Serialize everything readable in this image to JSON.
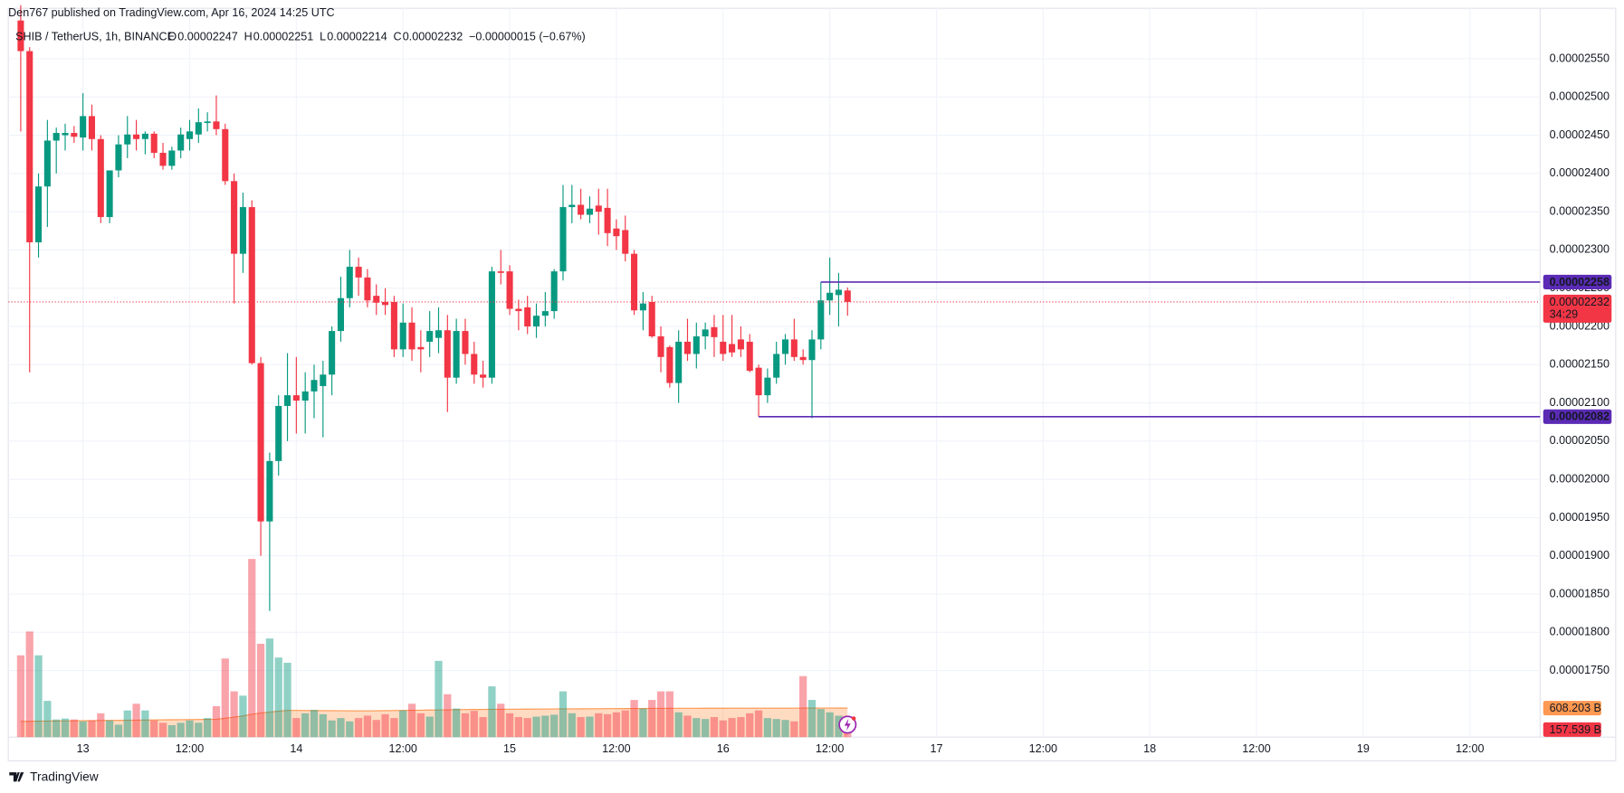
{
  "header": {
    "publisher": "Den767 published on TradingView.com, Apr 16, 2024 14:25 UTC",
    "symbol": "SHIB / TetherUS, 1h, BINANCE",
    "ohlc": [
      {
        "label": "O",
        "value": "0.00002247"
      },
      {
        "label": "H",
        "value": "0.00002251"
      },
      {
        "label": "L",
        "value": "0.00002214"
      },
      {
        "label": "C",
        "value": "0.00002232"
      }
    ],
    "change": "−0.00000015 (−0.67%)"
  },
  "chart_data": {
    "type": "candlestick",
    "x": [
      "12 17:00",
      "12 18:00",
      "12 19:00",
      "12 20:00",
      "12 21:00",
      "12 22:00",
      "12 23:00",
      "13 00:00",
      "13 01:00",
      "13 02:00",
      "13 03:00",
      "13 04:00",
      "13 05:00",
      "13 06:00",
      "13 07:00",
      "13 08:00",
      "13 09:00",
      "13 10:00",
      "13 11:00",
      "13 12:00",
      "13 13:00",
      "13 14:00",
      "13 15:00",
      "13 16:00",
      "13 17:00",
      "13 18:00",
      "13 19:00",
      "13 20:00",
      "13 21:00",
      "13 22:00",
      "13 23:00",
      "14 00:00",
      "14 01:00",
      "14 02:00",
      "14 03:00",
      "14 04:00",
      "14 05:00",
      "14 06:00",
      "14 07:00",
      "14 08:00",
      "14 09:00",
      "14 10:00",
      "14 11:00",
      "14 12:00",
      "14 13:00",
      "14 14:00",
      "14 15:00",
      "14 16:00",
      "14 17:00",
      "14 18:00",
      "14 19:00",
      "14 20:00",
      "14 21:00",
      "14 22:00",
      "14 23:00",
      "15 00:00",
      "15 01:00",
      "15 02:00",
      "15 03:00",
      "15 04:00",
      "15 05:00",
      "15 06:00",
      "15 07:00",
      "15 08:00",
      "15 09:00",
      "15 10:00",
      "15 11:00",
      "15 12:00",
      "15 13:00",
      "15 14:00",
      "15 15:00",
      "15 16:00",
      "15 17:00",
      "15 18:00",
      "15 19:00",
      "15 20:00",
      "15 21:00",
      "15 22:00",
      "15 23:00",
      "16 00:00",
      "16 01:00",
      "16 02:00",
      "16 03:00",
      "16 04:00",
      "16 05:00",
      "16 06:00",
      "16 07:00",
      "16 08:00",
      "16 09:00",
      "16 10:00",
      "16 11:00",
      "16 12:00",
      "16 13:00",
      "16 14:00"
    ],
    "open": [
      2.6e-05,
      2.56e-05,
      2.31e-05,
      2.383e-05,
      2.443e-05,
      2.45e-05,
      2.453e-05,
      2.447e-05,
      2.475e-05,
      2.445e-05,
      2.343e-05,
      2.404e-05,
      2.438e-05,
      2.451e-05,
      2.445e-05,
      2.452e-05,
      2.427e-05,
      2.41e-05,
      2.43e-05,
      2.445e-05,
      2.451e-05,
      2.466e-05,
      2.468e-05,
      2.458e-05,
      2.39e-05,
      2.295e-05,
      2.356e-05,
      2.152e-05,
      1.945e-05,
      2.024e-05,
      2.096e-05,
      2.11e-05,
      2.103e-05,
      2.115e-05,
      2.122e-05,
      2.137e-05,
      2.194e-05,
      2.237e-05,
      2.278e-05,
      2.264e-05,
      2.24e-05,
      2.232e-05,
      2.232e-05,
      2.17e-05,
      2.205e-05,
      2.173e-05,
      2.18e-05,
      2.185e-05,
      2.195e-05,
      2.133e-05,
      2.194e-05,
      2.164e-05,
      2.137e-05,
      2.133e-05,
      2.272e-05,
      2.272e-05,
      2.223e-05,
      2.225e-05,
      2.2e-05,
      2.214e-05,
      2.22e-05,
      2.272e-05,
      2.356e-05,
      2.359e-05,
      2.346e-05,
      2.358e-05,
      2.355e-05,
      2.328e-05,
      2.326e-05,
      2.295e-05,
      2.221e-05,
      2.232e-05,
      2.187e-05,
      2.173e-05,
      2.126e-05,
      2.18e-05,
      2.164e-05,
      2.187e-05,
      2.199e-05,
      2.18e-05,
      2.177e-05,
      2.183e-05,
      2.18e-05,
      2.146e-05,
      2.11e-05,
      2.133e-05,
      2.164e-05,
      2.183e-05,
      2.16e-05,
      2.156e-05,
      2.183e-05,
      2.234e-05,
      2.241e-05,
      2.247e-05
    ],
    "high": [
      2.62e-05,
      2.565e-05,
      2.4e-05,
      2.47e-05,
      2.46e-05,
      2.465e-05,
      2.462e-05,
      2.505e-05,
      2.49e-05,
      2.45e-05,
      2.4e-05,
      2.45e-05,
      2.475e-05,
      2.47e-05,
      2.455e-05,
      2.455e-05,
      2.44e-05,
      2.435e-05,
      2.46e-05,
      2.47e-05,
      2.485e-05,
      2.48e-05,
      2.502e-05,
      2.465e-05,
      2.4e-05,
      2.375e-05,
      2.365e-05,
      2.16e-05,
      2.035e-05,
      2.11e-05,
      2.165e-05,
      2.16e-05,
      2.14e-05,
      2.15e-05,
      2.155e-05,
      2.2e-05,
      2.265e-05,
      2.3e-05,
      2.29e-05,
      2.275e-05,
      2.255e-05,
      2.25e-05,
      2.24e-05,
      2.23e-05,
      2.225e-05,
      2.195e-05,
      2.22e-05,
      2.225e-05,
      2.215e-05,
      2.21e-05,
      2.21e-05,
      2.18e-05,
      2.155e-05,
      2.278e-05,
      2.3e-05,
      2.28e-05,
      2.235e-05,
      2.24e-05,
      2.23e-05,
      2.245e-05,
      2.275e-05,
      2.385e-05,
      2.385e-05,
      2.38e-05,
      2.37e-05,
      2.38e-05,
      2.38e-05,
      2.34e-05,
      2.345e-05,
      2.3e-05,
      2.245e-05,
      2.24e-05,
      2.2e-05,
      2.175e-05,
      2.195e-05,
      2.21e-05,
      2.205e-05,
      2.205e-05,
      2.215e-05,
      2.215e-05,
      2.215e-05,
      2.2e-05,
      2.19e-05,
      2.15e-05,
      2.145e-05,
      2.18e-05,
      2.19e-05,
      2.21e-05,
      2.17e-05,
      2.195e-05,
      2.258e-05,
      2.29e-05,
      2.27e-05,
      2.251e-05
    ],
    "low": [
      2.455e-05,
      2.14e-05,
      2.29e-05,
      2.33e-05,
      2.4e-05,
      2.43e-05,
      2.44e-05,
      2.43e-05,
      2.43e-05,
      2.335e-05,
      2.335e-05,
      2.395e-05,
      2.42e-05,
      2.43e-05,
      2.425e-05,
      2.42e-05,
      2.405e-05,
      2.405e-05,
      2.42e-05,
      2.43e-05,
      2.44e-05,
      2.455e-05,
      2.45e-05,
      2.385e-05,
      2.23e-05,
      2.27e-05,
      2.15e-05,
      1.9e-05,
      1.828e-05,
      2.005e-05,
      2.05e-05,
      2.06e-05,
      2.06e-05,
      2.08e-05,
      2.055e-05,
      2.11e-05,
      2.18e-05,
      2.225e-05,
      2.24e-05,
      2.225e-05,
      2.215e-05,
      2.215e-05,
      2.16e-05,
      2.16e-05,
      2.155e-05,
      2.14e-05,
      2.16e-05,
      2.165e-05,
      2.088e-05,
      2.125e-05,
      2.15e-05,
      2.125e-05,
      2.12e-05,
      2.125e-05,
      2.255e-05,
      2.215e-05,
      2.195e-05,
      2.19e-05,
      2.185e-05,
      2.2e-05,
      2.21e-05,
      2.26e-05,
      2.335e-05,
      2.34e-05,
      2.335e-05,
      2.32e-05,
      2.305e-05,
      2.3e-05,
      2.285e-05,
      2.215e-05,
      2.195e-05,
      2.185e-05,
      2.14e-05,
      2.12e-05,
      2.1e-05,
      2.155e-05,
      2.145e-05,
      2.17e-05,
      2.16e-05,
      2.155e-05,
      2.16e-05,
      2.16e-05,
      2.14e-05,
      2.082e-05,
      2.1e-05,
      2.125e-05,
      2.15e-05,
      2.155e-05,
      2.15e-05,
      2.08e-05,
      2.17e-05,
      2.215e-05,
      2.2e-05,
      2.214e-05
    ],
    "close": [
      2.56e-05,
      2.31e-05,
      2.383e-05,
      2.443e-05,
      2.453e-05,
      2.453e-05,
      2.448e-05,
      2.475e-05,
      2.445e-05,
      2.343e-05,
      2.404e-05,
      2.438e-05,
      2.451e-05,
      2.445e-05,
      2.452e-05,
      2.427e-05,
      2.41e-05,
      2.43e-05,
      2.451e-05,
      2.455e-05,
      2.467e-05,
      2.468e-05,
      2.458e-05,
      2.39e-05,
      2.295e-05,
      2.356e-05,
      2.152e-05,
      1.945e-05,
      2.024e-05,
      2.096e-05,
      2.11e-05,
      2.103e-05,
      2.115e-05,
      2.13e-05,
      2.137e-05,
      2.194e-05,
      2.237e-05,
      2.278e-05,
      2.264e-05,
      2.234e-05,
      2.231e-05,
      2.228e-05,
      2.17e-05,
      2.205e-05,
      2.17e-05,
      2.17e-05,
      2.194e-05,
      2.195e-05,
      2.133e-05,
      2.194e-05,
      2.164e-05,
      2.137e-05,
      2.133e-05,
      2.272e-05,
      2.27e-05,
      2.223e-05,
      2.22e-05,
      2.2e-05,
      2.214e-05,
      2.22e-05,
      2.272e-05,
      2.356e-05,
      2.359e-05,
      2.346e-05,
      2.354e-05,
      2.35e-05,
      2.322e-05,
      2.318e-05,
      2.295e-05,
      2.221e-05,
      2.23e-05,
      2.187e-05,
      2.16e-05,
      2.126e-05,
      2.18e-05,
      2.164e-05,
      2.187e-05,
      2.196e-05,
      2.186e-05,
      2.164e-05,
      2.166e-05,
      2.17e-05,
      2.142e-05,
      2.11e-05,
      2.133e-05,
      2.164e-05,
      2.183e-05,
      2.16e-05,
      2.156e-05,
      2.183e-05,
      2.234e-05,
      2.244e-05,
      2.248e-05,
      2.232e-05
    ],
    "volume": [
      1717,
      2217,
      1717,
      760,
      370,
      390,
      370,
      330,
      350,
      500,
      350,
      260,
      560,
      700,
      560,
      350,
      300,
      250,
      300,
      350,
      300,
      400,
      650,
      1650,
      960,
      870,
      3740,
      1960,
      2070,
      1670,
      1560,
      400,
      500,
      570,
      480,
      350,
      400,
      330,
      400,
      450,
      360,
      480,
      400,
      560,
      700,
      500,
      430,
      1600,
      900,
      600,
      500,
      550,
      420,
      1065,
      700,
      500,
      420,
      400,
      430,
      450,
      470,
      960,
      500,
      420,
      430,
      500,
      480,
      520,
      560,
      780,
      600,
      780,
      960,
      960,
      520,
      450,
      400,
      380,
      420,
      350,
      400,
      420,
      500,
      560,
      400,
      380,
      360,
      330,
      1280,
      780,
      590,
      520,
      450,
      157.539
    ],
    "volume_ma": [
      330,
      332,
      334,
      336,
      338,
      340,
      342,
      344,
      346,
      348,
      350,
      352,
      354,
      356,
      358,
      360,
      362,
      364,
      366,
      368,
      370,
      372,
      374,
      395,
      420,
      445,
      480,
      505,
      525,
      545,
      560,
      560,
      558,
      556,
      555,
      554,
      553,
      552,
      551,
      550,
      552,
      555,
      558,
      560,
      562,
      565,
      568,
      570,
      572,
      575,
      578,
      580,
      582,
      583,
      584,
      585,
      586,
      587,
      588,
      589,
      590,
      592,
      593,
      594,
      595,
      596,
      597,
      598,
      599,
      600,
      601,
      602,
      603,
      604,
      604,
      605,
      605,
      606,
      606,
      606,
      607,
      607,
      607,
      607,
      608,
      608,
      608,
      608,
      609,
      609,
      609,
      609,
      608.5,
      608.203
    ],
    "volume_label": "157.539 B",
    "volume_ma_label": "608.203 B",
    "countdown": "34:29",
    "levels": [
      2.258e-05,
      2.082e-05
    ],
    "up_color": "#089981",
    "down_color": "#f23645",
    "volume_ma_color": "#ff9850",
    "level_color": "#5b2bb5",
    "ylim": [
      1.663e-05,
      2.616e-05
    ],
    "yticks": [
      {
        "value": 1.75e-05,
        "label": "0.00001750"
      },
      {
        "value": 1.8e-05,
        "label": "0.00001800"
      },
      {
        "value": 1.85e-05,
        "label": "0.00001850"
      },
      {
        "value": 1.9e-05,
        "label": "0.00001900"
      },
      {
        "value": 1.95e-05,
        "label": "0.00001950"
      },
      {
        "value": 2e-05,
        "label": "0.00002000"
      },
      {
        "value": 2.05e-05,
        "label": "0.00002050"
      },
      {
        "value": 2.1e-05,
        "label": "0.00002100"
      },
      {
        "value": 2.15e-05,
        "label": "0.00002150"
      },
      {
        "value": 2.2e-05,
        "label": "0.00002200"
      },
      {
        "value": 2.25e-05,
        "label": "0.00002250"
      },
      {
        "value": 2.3e-05,
        "label": "0.00002300"
      },
      {
        "value": 2.35e-05,
        "label": "0.00002350"
      },
      {
        "value": 2.4e-05,
        "label": "0.00002400"
      },
      {
        "value": 2.45e-05,
        "label": "0.00002450"
      },
      {
        "value": 2.5e-05,
        "label": "0.00002500"
      },
      {
        "value": 2.55e-05,
        "label": "0.00002550"
      }
    ],
    "volume_ylim": [
      0,
      15300
    ],
    "xlim": [
      "12 15:36",
      "19 19:54"
    ],
    "xticks": [
      {
        "value": "13 00:00",
        "label": "13"
      },
      {
        "value": "13 12:00",
        "label": "12:00"
      },
      {
        "value": "14 00:00",
        "label": "14"
      },
      {
        "value": "14 12:00",
        "label": "12:00"
      },
      {
        "value": "15 00:00",
        "label": "15"
      },
      {
        "value": "15 12:00",
        "label": "12:00"
      },
      {
        "value": "16 00:00",
        "label": "16"
      },
      {
        "value": "16 12:00",
        "label": "12:00"
      },
      {
        "value": "17 00:00",
        "label": "17"
      },
      {
        "value": "17 12:00",
        "label": "12:00"
      },
      {
        "value": "18 00:00",
        "label": "18"
      },
      {
        "value": "18 12:00",
        "label": "12:00"
      },
      {
        "value": "19 00:00",
        "label": "19"
      },
      {
        "value": "19 12:00",
        "label": "12:00"
      }
    ],
    "grid": true
  },
  "footer": {
    "logo": "TradingView"
  }
}
